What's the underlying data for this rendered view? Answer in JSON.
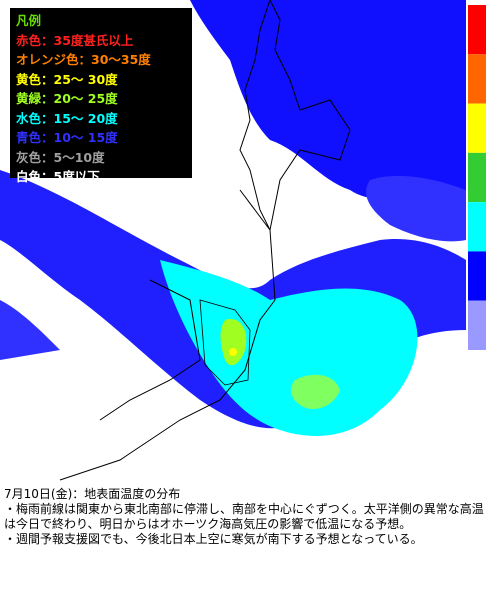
{
  "legend": {
    "title": {
      "text": "凡例",
      "color": "#66dd00"
    },
    "items": [
      {
        "text": "赤色：35度甚氏以上",
        "color": "#ff2020"
      },
      {
        "text": "オレンジ色：30～35度",
        "color": "#ff8000"
      },
      {
        "text": "黄色：25～ 30度",
        "color": "#ffff00"
      },
      {
        "text": "黄緑：20～ 25度",
        "color": "#a0ff20"
      },
      {
        "text": "水色：15～ 20度",
        "color": "#00ffff"
      },
      {
        "text": "青色：10～ 15度",
        "color": "#3030ff"
      },
      {
        "text": "灰色：5～10度",
        "color": "#a0a0a0"
      },
      {
        "text": "白色：5度以下",
        "color": "#ffffff"
      }
    ]
  },
  "colorbar": [
    "#ff0000",
    "#ff6600",
    "#ffff00",
    "#33cc33",
    "#00ffff",
    "#0000ff",
    "#9999ff"
  ],
  "caption": {
    "title": "7月10日(金)：地表面温度の分布",
    "bullets": [
      "・梅雨前線は関東から東北南部に停滞し、南部を中心にぐずつく。太平洋側の異常な高温は今日で終わり、明日からはオホーツク海高気圧の影響で低温になる予想。",
      "・週間予報支援図でも、今後北日本上空に寒気が南下する予想となっている。"
    ]
  }
}
